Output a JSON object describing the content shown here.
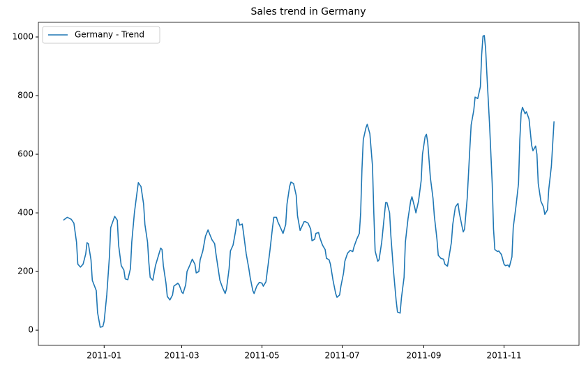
{
  "chart_data": {
    "type": "line",
    "title": "Sales trend in Germany",
    "x": [
      "2010-12-01",
      "2010-12-04",
      "2010-12-07",
      "2010-12-09",
      "2010-12-11",
      "2010-12-12",
      "2010-12-14",
      "2010-12-16",
      "2010-12-18",
      "2010-12-19",
      "2010-12-20",
      "2010-12-22",
      "2010-12-23",
      "2010-12-26",
      "2010-12-27",
      "2010-12-29",
      "2010-12-31",
      "2011-01-01",
      "2011-01-03",
      "2011-01-05",
      "2011-01-06",
      "2011-01-09",
      "2011-01-11",
      "2011-01-12",
      "2011-01-14",
      "2011-01-16",
      "2011-01-17",
      "2011-01-19",
      "2011-01-21",
      "2011-01-22",
      "2011-01-24",
      "2011-01-26",
      "2011-01-27",
      "2011-01-29",
      "2011-01-31",
      "2011-02-01",
      "2011-02-03",
      "2011-02-04",
      "2011-02-05",
      "2011-02-07",
      "2011-02-09",
      "2011-02-11",
      "2011-02-13",
      "2011-02-14",
      "2011-02-15",
      "2011-02-17",
      "2011-02-18",
      "2011-02-20",
      "2011-02-22",
      "2011-02-23",
      "2011-02-26",
      "2011-02-27",
      "2011-03-01",
      "2011-03-02",
      "2011-03-04",
      "2011-03-05",
      "2011-03-07",
      "2011-03-09",
      "2011-03-11",
      "2011-03-12",
      "2011-03-14",
      "2011-03-15",
      "2011-03-17",
      "2011-03-19",
      "2011-03-21",
      "2011-03-22",
      "2011-03-24",
      "2011-03-26",
      "2011-03-27",
      "2011-03-29",
      "2011-03-30",
      "2011-04-01",
      "2011-04-03",
      "2011-04-04",
      "2011-04-06",
      "2011-04-07",
      "2011-04-09",
      "2011-04-11",
      "2011-04-12",
      "2011-04-13",
      "2011-04-14",
      "2011-04-16",
      "2011-04-17",
      "2011-04-19",
      "2011-04-21",
      "2011-04-22",
      "2011-04-24",
      "2011-04-25",
      "2011-04-27",
      "2011-04-29",
      "2011-05-01",
      "2011-05-02",
      "2011-05-04",
      "2011-05-05",
      "2011-05-07",
      "2011-05-09",
      "2011-05-10",
      "2011-05-12",
      "2011-05-13",
      "2011-05-15",
      "2011-05-17",
      "2011-05-19",
      "2011-05-20",
      "2011-05-22",
      "2011-05-23",
      "2011-05-25",
      "2011-05-27",
      "2011-05-28",
      "2011-05-30",
      "2011-05-31",
      "2011-06-02",
      "2011-06-03",
      "2011-06-05",
      "2011-06-07",
      "2011-06-08",
      "2011-06-10",
      "2011-06-11",
      "2011-06-13",
      "2011-06-14",
      "2011-06-16",
      "2011-06-18",
      "2011-06-19",
      "2011-06-21",
      "2011-06-22",
      "2011-06-24",
      "2011-06-26",
      "2011-06-27",
      "2011-06-29",
      "2011-06-30",
      "2011-07-02",
      "2011-07-03",
      "2011-07-05",
      "2011-07-07",
      "2011-07-09",
      "2011-07-10",
      "2011-07-12",
      "2011-07-14",
      "2011-07-15",
      "2011-07-16",
      "2011-07-17",
      "2011-07-19",
      "2011-07-20",
      "2011-07-22",
      "2011-07-24",
      "2011-07-25",
      "2011-07-26",
      "2011-07-28",
      "2011-07-29",
      "2011-07-31",
      "2011-08-02",
      "2011-08-03",
      "2011-08-04",
      "2011-08-06",
      "2011-08-07",
      "2011-08-09",
      "2011-08-11",
      "2011-08-12",
      "2011-08-14",
      "2011-08-15",
      "2011-08-17",
      "2011-08-18",
      "2011-08-20",
      "2011-08-22",
      "2011-08-23",
      "2011-08-25",
      "2011-08-26",
      "2011-08-28",
      "2011-08-30",
      "2011-08-31",
      "2011-09-02",
      "2011-09-03",
      "2011-09-04",
      "2011-09-06",
      "2011-09-08",
      "2011-09-09",
      "2011-09-11",
      "2011-09-12",
      "2011-09-14",
      "2011-09-16",
      "2011-09-17",
      "2011-09-19",
      "2011-09-20",
      "2011-09-22",
      "2011-09-23",
      "2011-09-25",
      "2011-09-27",
      "2011-09-28",
      "2011-09-30",
      "2011-10-01",
      "2011-10-02",
      "2011-10-04",
      "2011-10-06",
      "2011-10-07",
      "2011-10-09",
      "2011-10-10",
      "2011-10-12",
      "2011-10-14",
      "2011-10-15",
      "2011-10-16",
      "2011-10-17",
      "2011-10-18",
      "2011-10-19",
      "2011-10-21",
      "2011-10-23",
      "2011-10-24",
      "2011-10-25",
      "2011-10-27",
      "2011-10-28",
      "2011-10-30",
      "2011-11-01",
      "2011-11-02",
      "2011-11-04",
      "2011-11-05",
      "2011-11-07",
      "2011-11-08",
      "2011-11-10",
      "2011-11-12",
      "2011-11-13",
      "2011-11-14",
      "2011-11-15",
      "2011-11-17",
      "2011-11-18",
      "2011-11-20",
      "2011-11-22",
      "2011-11-23",
      "2011-11-25",
      "2011-11-26",
      "2011-11-27",
      "2011-11-29",
      "2011-12-01",
      "2011-12-02",
      "2011-12-04",
      "2011-12-05",
      "2011-12-07",
      "2011-12-09"
    ],
    "series": [
      {
        "name": "Germany - Trend",
        "color": "#1f77b4",
        "values": [
          375,
          385,
          378,
          365,
          300,
          225,
          215,
          225,
          260,
          298,
          295,
          240,
          170,
          135,
          60,
          10,
          12,
          30,
          120,
          250,
          350,
          388,
          375,
          290,
          220,
          205,
          175,
          172,
          210,
          300,
          400,
          470,
          503,
          490,
          430,
          360,
          300,
          230,
          180,
          170,
          220,
          250,
          280,
          275,
          220,
          160,
          115,
          103,
          120,
          150,
          160,
          155,
          130,
          125,
          155,
          200,
          220,
          242,
          225,
          195,
          200,
          240,
          270,
          320,
          342,
          330,
          308,
          295,
          260,
          200,
          170,
          145,
          125,
          140,
          210,
          270,
          290,
          340,
          375,
          378,
          358,
          362,
          330,
          260,
          210,
          180,
          135,
          125,
          150,
          163,
          160,
          150,
          165,
          200,
          270,
          350,
          385,
          385,
          370,
          350,
          330,
          360,
          430,
          490,
          505,
          500,
          460,
          390,
          340,
          350,
          370,
          370,
          365,
          345,
          305,
          310,
          330,
          333,
          315,
          290,
          275,
          245,
          240,
          225,
          170,
          125,
          112,
          120,
          150,
          195,
          235,
          262,
          272,
          268,
          285,
          310,
          330,
          400,
          550,
          650,
          690,
          702,
          670,
          560,
          400,
          270,
          235,
          240,
          300,
          390,
          435,
          435,
          400,
          320,
          200,
          100,
          62,
          58,
          110,
          180,
          300,
          380,
          440,
          455,
          420,
          400,
          440,
          510,
          600,
          660,
          668,
          640,
          520,
          450,
          390,
          310,
          255,
          245,
          242,
          225,
          218,
          245,
          300,
          360,
          420,
          432,
          400,
          355,
          335,
          345,
          450,
          620,
          700,
          750,
          795,
          790,
          830,
          940,
          1003,
          1005,
          960,
          870,
          700,
          500,
          345,
          275,
          268,
          270,
          258,
          225,
          220,
          222,
          215,
          250,
          350,
          420,
          500,
          650,
          740,
          760,
          738,
          745,
          720,
          630,
          612,
          628,
          600,
          500,
          440,
          420,
          395,
          410,
          480,
          560,
          712
        ]
      }
    ],
    "xlim": [
      "2010-11-12",
      "2011-12-28"
    ],
    "xticks": [
      {
        "value": "2011-01-01",
        "label": "2011-01"
      },
      {
        "value": "2011-03-01",
        "label": "2011-03"
      },
      {
        "value": "2011-05-01",
        "label": "2011-05"
      },
      {
        "value": "2011-07-01",
        "label": "2011-07"
      },
      {
        "value": "2011-09-01",
        "label": "2011-09"
      },
      {
        "value": "2011-11-01",
        "label": "2011-11"
      }
    ],
    "ylim": [
      -52,
      1050
    ],
    "yticks": [
      0,
      200,
      400,
      600,
      800,
      1000
    ],
    "grid": false,
    "legend": "upper left"
  }
}
